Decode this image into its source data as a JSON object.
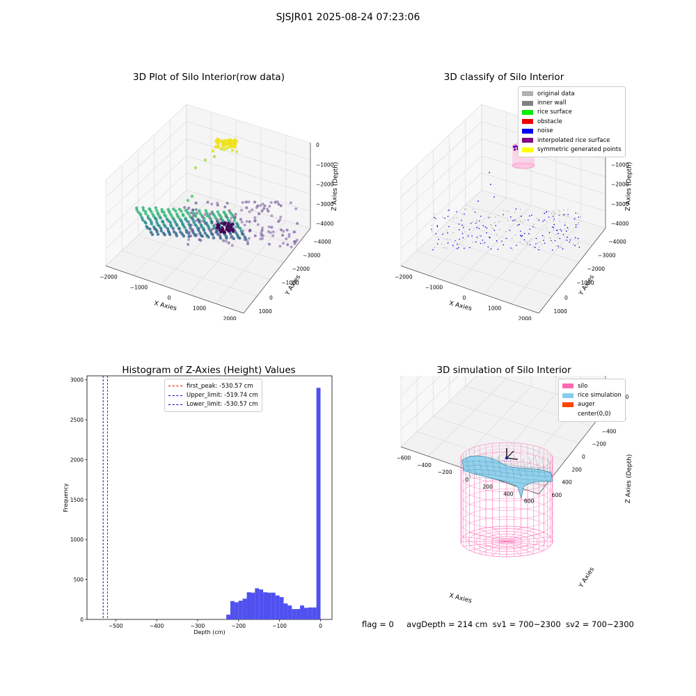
{
  "figure": {
    "suptitle": "SJSJR01 2025-08-24 07:23:06"
  },
  "footer": {
    "flag": "flag = 0",
    "avg": "avgDepth = 214 cm",
    "sv1": "sv1 = 700~2300",
    "sv2": "sv2 = 700~2300"
  },
  "chart_data": [
    {
      "type": "scatter",
      "title": "3D Plot of Silo Interior(row data)",
      "xlabel": "X Axies",
      "ylabel": "Y Axies",
      "zlabel": "Z Axies (Depth)",
      "x_ticks": [
        "−2000",
        "−1000",
        "0",
        "1000",
        "2000"
      ],
      "y_ticks": [
        "1000",
        "0",
        "−1000",
        "−2000",
        "−3000",
        "−4000"
      ],
      "z_ticks": [
        "0",
        "−1000",
        "−2000",
        "−3000",
        "−4000"
      ],
      "clusters": [
        {
          "name": "top",
          "x": [
            -300,
            300
          ],
          "y": [
            -2200,
            -1600
          ],
          "z": [
            -150,
            0
          ],
          "count": 60
        },
        {
          "name": "band",
          "x": [
            -2000,
            500
          ],
          "y": [
            -3600,
            -2200
          ],
          "z": [
            -4000,
            -3200
          ],
          "count": 260
        },
        {
          "name": "scatter",
          "x": [
            -500,
            2200
          ],
          "y": [
            -4000,
            -1000
          ],
          "z": [
            -4200,
            -3300
          ],
          "count": 140
        }
      ],
      "colors": {
        "yellow": "#f0e21b",
        "green": "#35b779",
        "teal": "#21918c",
        "blue": "#31688e",
        "purple": "#6a4c93",
        "dark": "#440154"
      }
    },
    {
      "type": "scatter",
      "title": "3D classify of Silo Interior",
      "xlabel": "X Axies",
      "ylabel": "Y Axies",
      "zlabel": "Z Axies (Depth)",
      "x_ticks": [
        "−2000",
        "−1000",
        "0",
        "1000",
        "2000"
      ],
      "y_ticks": [
        "1000",
        "0",
        "−1000",
        "−2000",
        "−3000",
        "−4000"
      ],
      "z_ticks": [
        "0",
        "−1000",
        "−2000",
        "−3000",
        "−4000"
      ],
      "legend": [
        {
          "label": "original data",
          "color": "#b0b0b0"
        },
        {
          "label": "inner wall",
          "color": "#808080"
        },
        {
          "label": "rice surface",
          "color": "#00ee00"
        },
        {
          "label": "obstacle",
          "color": "#ee0000"
        },
        {
          "label": "noise",
          "color": "#0000ee"
        },
        {
          "label": "interpolated rice surface",
          "color": "#800080"
        },
        {
          "label": "symmetric generated points",
          "color": "#ffff00"
        }
      ]
    },
    {
      "type": "bar",
      "title": "Histogram of Z-Axies (Height) Values",
      "xlabel": "Depth (cm)",
      "ylabel": "Frequency",
      "xlim": [
        -570,
        28
      ],
      "ylim": [
        0,
        3050
      ],
      "x_ticks": [
        -500,
        -400,
        -300,
        -200,
        -100,
        0
      ],
      "x_tick_labels": [
        "−500",
        "−400",
        "−300",
        "−200",
        "−100",
        "0"
      ],
      "y_ticks": [
        0,
        500,
        1000,
        1500,
        2000,
        2500,
        3000
      ],
      "bin_width": 10,
      "bins": [
        -235,
        -225,
        -215,
        -205,
        -195,
        -185,
        -175,
        -165,
        -155,
        -145,
        -135,
        -125,
        -115,
        -105,
        -95,
        -85,
        -75,
        -65,
        -55,
        -45,
        -35,
        -25,
        -15,
        -5
      ],
      "values": [
        5,
        60,
        230,
        215,
        235,
        260,
        340,
        335,
        390,
        375,
        340,
        335,
        335,
        300,
        280,
        200,
        175,
        130,
        130,
        175,
        145,
        150,
        150,
        2900
      ],
      "bar_color": "#5050f0",
      "lines": [
        {
          "label": "first_peak: -530.57 cm",
          "x": -530.57,
          "color": "#ee0000"
        },
        {
          "label": "Upper_limit: -519.74 cm",
          "x": -519.74,
          "color": "#0000cc"
        },
        {
          "label": "Lower_limit: -530.57 cm",
          "x": -530.57,
          "color": "#0000cc"
        }
      ]
    },
    {
      "type": "scatter",
      "title": "3D simulation of Silo Interior",
      "xlabel": "X Axies",
      "ylabel": "Y Axies",
      "zlabel": "Z Axies (Depth)",
      "x_ticks": [
        "−600",
        "−400",
        "−200",
        "0",
        "200",
        "400",
        "600"
      ],
      "y_ticks": [
        "600",
        "400",
        "200",
        "0",
        "−200",
        "−400",
        "−600"
      ],
      "z_ticks": [
        "0",
        "−200",
        "−400",
        "−600",
        "−800",
        "−1000"
      ],
      "legend": [
        {
          "label": "silo",
          "color": "#ff69b4"
        },
        {
          "label": "rice simulation",
          "color": "#87ceeb"
        },
        {
          "label": "auger",
          "color": "#ff4500"
        },
        {
          "label": "center(0,0)",
          "color": "#ffffff"
        }
      ]
    }
  ]
}
